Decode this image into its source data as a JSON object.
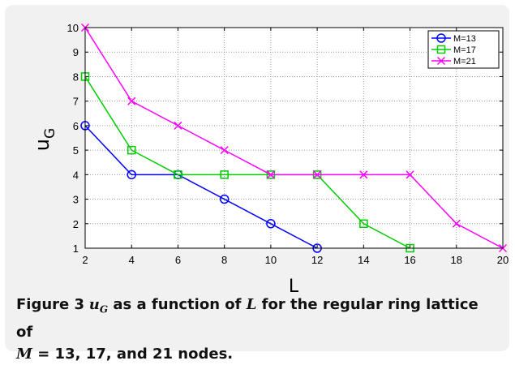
{
  "figure": {
    "label": "Figure 3",
    "caption_var": "u",
    "caption_var_sub": "G",
    "caption_mid": " as a function of ",
    "caption_L": "L",
    "caption_mid2": " for the regular ring lattice of",
    "caption_M": "M",
    "caption_eq": " = 13, 17, and 21",
    "caption_end": " nodes."
  },
  "chart_data": {
    "type": "line",
    "xlabel": "L",
    "ylabel": "u",
    "ylabel_sub": "G",
    "xlim": [
      2,
      20
    ],
    "ylim": [
      1,
      10
    ],
    "xticks": [
      2,
      4,
      6,
      8,
      10,
      12,
      14,
      16,
      18,
      20
    ],
    "yticks": [
      1,
      2,
      3,
      4,
      5,
      6,
      7,
      8,
      9,
      10
    ],
    "grid": true,
    "legend_position": "top-right",
    "series": [
      {
        "name": "M=13",
        "color": "#0000ff",
        "marker": "circle",
        "x": [
          2,
          4,
          6,
          8,
          10,
          12
        ],
        "y": [
          6,
          4,
          4,
          3,
          2,
          1
        ]
      },
      {
        "name": "M=17",
        "color": "#00cc00",
        "marker": "square",
        "x": [
          2,
          4,
          6,
          8,
          10,
          12,
          14,
          16
        ],
        "y": [
          8,
          5,
          4,
          4,
          4,
          4,
          2,
          1
        ]
      },
      {
        "name": "M=21",
        "color": "#ff00ff",
        "marker": "x",
        "x": [
          2,
          4,
          6,
          8,
          10,
          12,
          14,
          16,
          18,
          20
        ],
        "y": [
          10,
          7,
          6,
          5,
          4,
          4,
          4,
          4,
          2,
          1
        ]
      }
    ]
  }
}
